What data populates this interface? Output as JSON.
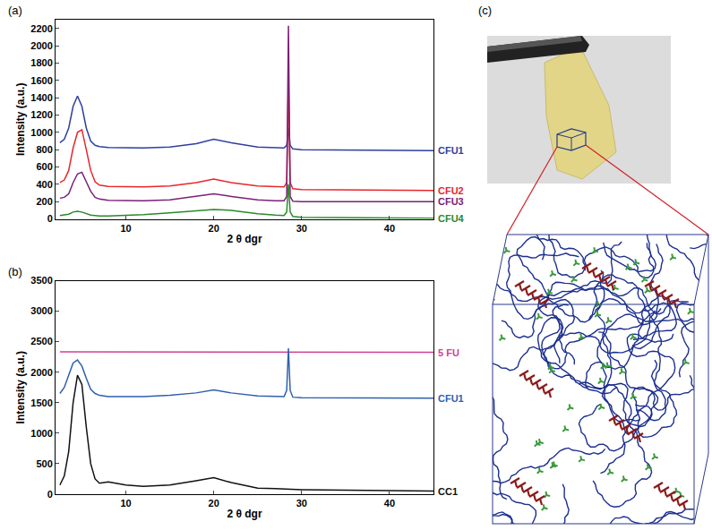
{
  "chart_data": [
    {
      "type": "line",
      "title": "(a)",
      "x_label": "2 θ dgr",
      "y_label": "Intensity (a.u.)",
      "x": [
        2.5,
        3,
        3.5,
        4,
        4.5,
        5,
        5.5,
        6,
        6.5,
        7,
        8,
        10,
        12,
        15,
        18,
        20,
        22,
        25,
        27,
        28,
        28.3,
        28.5,
        28.7,
        29,
        30,
        35,
        40,
        45
      ],
      "series": [
        {
          "name": "CFU1",
          "color": "#2f3f9e",
          "values": [
            880,
            920,
            1050,
            1300,
            1420,
            1300,
            1050,
            900,
            850,
            835,
            825,
            820,
            820,
            830,
            870,
            920,
            880,
            830,
            820,
            820,
            850,
            1050,
            850,
            810,
            800,
            795,
            790,
            790
          ]
        },
        {
          "name": "CFU2",
          "color": "#e8262b",
          "values": [
            420,
            450,
            560,
            820,
            1000,
            1030,
            800,
            560,
            430,
            390,
            375,
            370,
            370,
            380,
            420,
            460,
            420,
            380,
            370,
            370,
            420,
            1600,
            420,
            350,
            340,
            335,
            330,
            330
          ]
        },
        {
          "name": "CFU3",
          "color": "#7b2077",
          "values": [
            240,
            250,
            290,
            420,
            520,
            540,
            430,
            320,
            250,
            230,
            215,
            210,
            210,
            220,
            260,
            290,
            260,
            220,
            210,
            210,
            260,
            2230,
            260,
            205,
            200,
            200,
            200,
            200
          ]
        },
        {
          "name": "CFU4",
          "color": "#2a8a2a",
          "values": [
            40,
            45,
            55,
            80,
            90,
            80,
            60,
            45,
            40,
            35,
            35,
            40,
            50,
            70,
            95,
            110,
            100,
            60,
            45,
            40,
            80,
            400,
            80,
            30,
            20,
            15,
            12,
            10
          ]
        }
      ],
      "xlim": [
        2,
        45
      ],
      "xticks": [
        10,
        20,
        30,
        40
      ],
      "ylim": [
        0,
        2300
      ],
      "yticks": [
        0,
        200,
        400,
        600,
        800,
        1000,
        1200,
        1400,
        1600,
        1800,
        2000,
        2200
      ],
      "grid": false
    },
    {
      "type": "line",
      "title": "(b)",
      "x_label": "2 θ dgr",
      "y_label": "Intensity (a.u.)",
      "x": [
        2.5,
        3,
        3.5,
        4,
        4.5,
        5,
        5.5,
        6,
        6.5,
        7,
        8,
        10,
        12,
        15,
        18,
        20,
        22,
        25,
        27,
        28,
        28.3,
        28.5,
        28.7,
        29,
        30,
        35,
        40,
        45
      ],
      "series": [
        {
          "name": "5 FU",
          "color": "#d0409a",
          "values": [
            2335,
            2335,
            2333,
            2332,
            2332,
            2330,
            2330,
            2330,
            2330,
            2330,
            2330,
            2330,
            2330,
            2330,
            2330,
            2330,
            2330,
            2330,
            2328,
            2328,
            2328,
            2328,
            2328,
            2328,
            2328,
            2326,
            2325,
            2325
          ]
        },
        {
          "name": "CFU1",
          "color": "#2f5fb0",
          "values": [
            1650,
            1750,
            1950,
            2150,
            2200,
            2100,
            1900,
            1720,
            1650,
            1620,
            1600,
            1600,
            1600,
            1620,
            1660,
            1710,
            1660,
            1610,
            1600,
            1600,
            1700,
            2390,
            1700,
            1590,
            1580,
            1580,
            1575,
            1575
          ]
        },
        {
          "name": "CC1",
          "color": "#111111",
          "values": [
            150,
            300,
            700,
            1500,
            1950,
            1800,
            1100,
            500,
            250,
            180,
            200,
            150,
            130,
            150,
            220,
            270,
            190,
            100,
            90,
            85,
            85,
            85,
            85,
            80,
            75,
            65,
            55,
            50
          ]
        }
      ],
      "xlim": [
        2,
        45
      ],
      "xticks": [
        10,
        20,
        30,
        40
      ],
      "ylim": [
        0,
        3500
      ],
      "yticks": [
        0,
        500,
        1000,
        1500,
        2000,
        2500,
        3000,
        3500
      ],
      "grid": false
    }
  ],
  "diagram": {
    "label": "(c)"
  }
}
